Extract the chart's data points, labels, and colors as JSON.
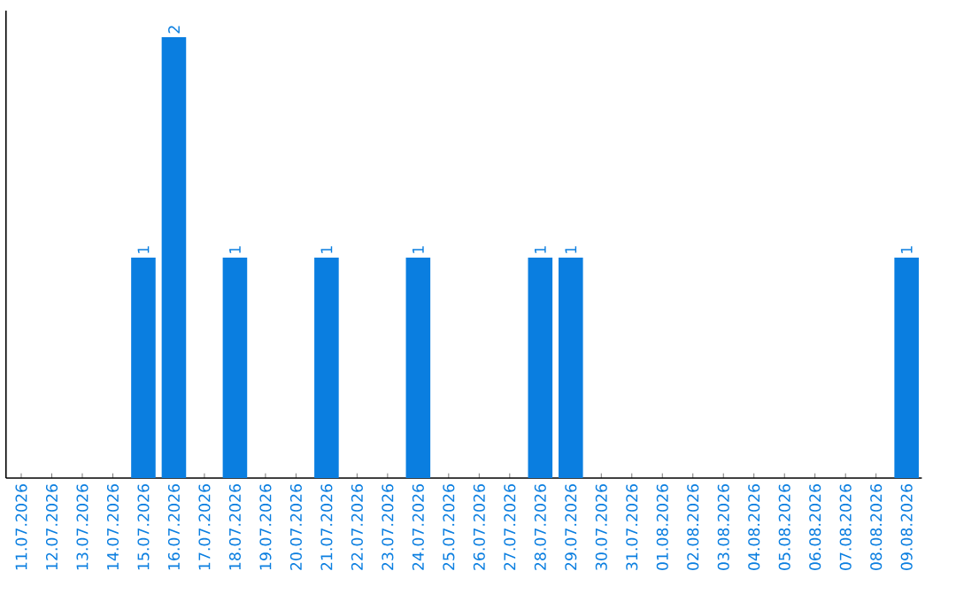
{
  "chart_data": {
    "type": "bar",
    "categories": [
      "11.07.2026",
      "12.07.2026",
      "13.07.2026",
      "14.07.2026",
      "15.07.2026",
      "16.07.2026",
      "17.07.2026",
      "18.07.2026",
      "19.07.2026",
      "20.07.2026",
      "21.07.2026",
      "22.07.2026",
      "23.07.2026",
      "24.07.2026",
      "25.07.2026",
      "26.07.2026",
      "27.07.2026",
      "28.07.2026",
      "29.07.2026",
      "30.07.2026",
      "31.07.2026",
      "01.08.2026",
      "02.08.2026",
      "03.08.2026",
      "04.08.2026",
      "05.08.2026",
      "06.08.2026",
      "07.08.2026",
      "08.08.2026",
      "09.08.2026"
    ],
    "values": [
      0,
      0,
      0,
      0,
      1,
      2,
      0,
      1,
      0,
      0,
      1,
      0,
      0,
      1,
      0,
      0,
      0,
      1,
      1,
      0,
      0,
      0,
      0,
      0,
      0,
      0,
      0,
      0,
      0,
      1
    ],
    "value_labels": [
      null,
      null,
      null,
      null,
      "1",
      "2",
      null,
      "1",
      null,
      null,
      "1",
      null,
      null,
      "1",
      null,
      null,
      null,
      "1",
      "1",
      null,
      null,
      null,
      null,
      null,
      null,
      null,
      null,
      null,
      null,
      "1"
    ],
    "color": "#0a7ee0",
    "tick_labels": "x"
  }
}
